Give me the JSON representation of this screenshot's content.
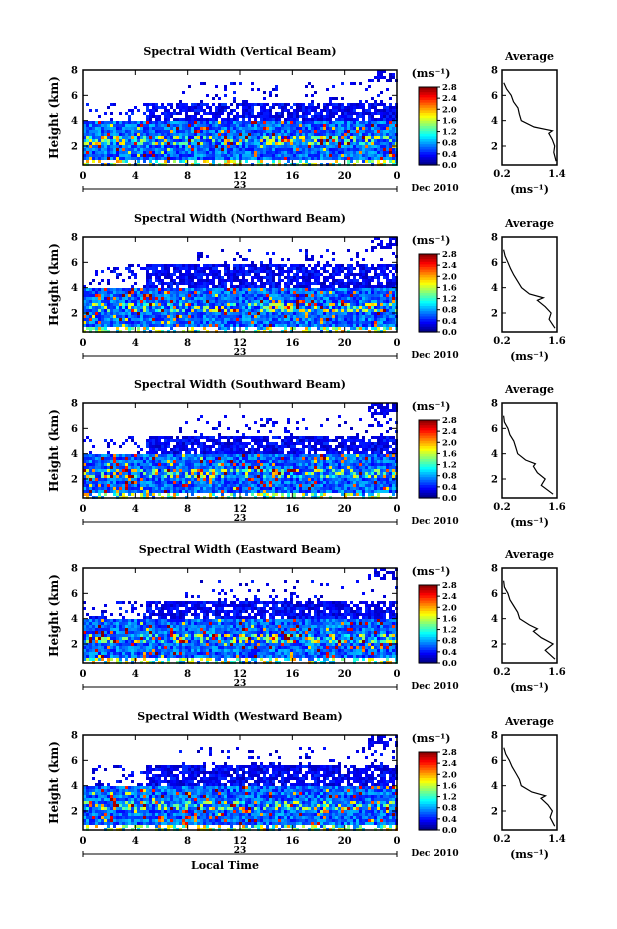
{
  "chart_data": [
    {
      "type": "heatmap",
      "title": "Spectral Width (Vertical Beam)",
      "ylabel": "Height (km)",
      "xticks": [
        "0",
        "4",
        "8",
        "12",
        "16",
        "20",
        "0"
      ],
      "yticks": [
        "2",
        "4",
        "6",
        "8"
      ],
      "day_label": "23",
      "date_label": "Dec 2010",
      "colorbar": {
        "unit": "(ms⁻¹)",
        "ticks": [
          "2.8",
          "2.4",
          "2.0",
          "1.6",
          "1.2",
          "0.8",
          "0.4",
          "0.0"
        ],
        "range": [
          0.0,
          2.8
        ]
      },
      "xlim": [
        0,
        24
      ],
      "ylim": [
        0.5,
        8
      ],
      "layer_tops_km": [
        5.6,
        4.0
      ],
      "avg": {
        "title": "Average",
        "xticks": [
          "0.2",
          "1.4"
        ],
        "xlim": [
          0.2,
          1.4
        ],
        "xlabel": "(ms⁻¹)",
        "height_km": [
          0.8,
          1.5,
          2.0,
          2.5,
          3.0,
          3.2,
          3.5,
          4.0,
          4.5,
          5.0,
          5.5,
          6.0,
          6.5,
          7.0
        ],
        "width": [
          1.38,
          1.33,
          1.35,
          1.3,
          1.22,
          1.3,
          0.9,
          0.62,
          0.58,
          0.55,
          0.45,
          0.4,
          0.3,
          0.24
        ]
      }
    },
    {
      "type": "heatmap",
      "title": "Spectral Width (Northward Beam)",
      "ylabel": "Height (km)",
      "xticks": [
        "0",
        "4",
        "8",
        "12",
        "16",
        "20",
        "0"
      ],
      "yticks": [
        "2",
        "4",
        "6",
        "8"
      ],
      "day_label": "23",
      "date_label": "Dec 2010",
      "colorbar": {
        "unit": "(ms⁻¹)",
        "ticks": [
          "2.8",
          "2.4",
          "2.0",
          "1.6",
          "1.2",
          "0.8",
          "0.4",
          "0.0"
        ],
        "range": [
          0.0,
          2.8
        ]
      },
      "xlim": [
        0,
        24
      ],
      "ylim": [
        0.5,
        8
      ],
      "layer_tops_km": [
        6.0,
        4.0
      ],
      "avg": {
        "title": "Average",
        "xticks": [
          "0.2",
          "1.6"
        ],
        "xlim": [
          0.2,
          1.6
        ],
        "xlabel": "(ms⁻¹)",
        "height_km": [
          0.8,
          1.5,
          2.0,
          2.5,
          3.0,
          3.2,
          3.5,
          4.0,
          4.5,
          5.0,
          5.5,
          6.0,
          6.5,
          7.0
        ],
        "width": [
          1.55,
          1.4,
          1.45,
          1.3,
          1.1,
          1.25,
          0.9,
          0.7,
          0.6,
          0.5,
          0.42,
          0.35,
          0.28,
          0.24
        ]
      }
    },
    {
      "type": "heatmap",
      "title": "Spectral Width (Southward Beam)",
      "ylabel": "Height (km)",
      "xticks": [
        "0",
        "4",
        "8",
        "12",
        "16",
        "20",
        "0"
      ],
      "yticks": [
        "2",
        "4",
        "6",
        "8"
      ],
      "day_label": "23",
      "date_label": "Dec 2010",
      "colorbar": {
        "unit": "(ms⁻¹)",
        "ticks": [
          "2.8",
          "2.4",
          "2.0",
          "1.6",
          "1.2",
          "0.8",
          "0.4",
          "0.0"
        ],
        "range": [
          0.0,
          2.8
        ]
      },
      "xlim": [
        0,
        24
      ],
      "ylim": [
        0.5,
        8
      ],
      "layer_tops_km": [
        5.6,
        4.2
      ],
      "avg": {
        "title": "Average",
        "xticks": [
          "0.2",
          "1.6"
        ],
        "xlim": [
          0.2,
          1.6
        ],
        "xlabel": "(ms⁻¹)",
        "height_km": [
          0.8,
          1.5,
          2.0,
          2.5,
          3.0,
          3.2,
          3.5,
          4.0,
          4.5,
          5.0,
          5.5,
          6.0,
          6.5,
          7.0
        ],
        "width": [
          1.5,
          1.2,
          1.3,
          1.1,
          1.0,
          1.05,
          0.8,
          0.6,
          0.55,
          0.5,
          0.4,
          0.35,
          0.26,
          0.24
        ]
      }
    },
    {
      "type": "heatmap",
      "title": "Spectral Width (Eastward Beam)",
      "ylabel": "Height (km)",
      "xticks": [
        "0",
        "4",
        "8",
        "12",
        "16",
        "20",
        "0"
      ],
      "yticks": [
        "2",
        "4",
        "6",
        "8"
      ],
      "day_label": "23",
      "date_label": "Dec 2010",
      "colorbar": {
        "unit": "(ms⁻¹)",
        "ticks": [
          "2.8",
          "2.4",
          "2.0",
          "1.6",
          "1.2",
          "0.8",
          "0.4",
          "0.0"
        ],
        "range": [
          0.0,
          2.8
        ]
      },
      "xlim": [
        0,
        24
      ],
      "ylim": [
        0.5,
        8
      ],
      "layer_tops_km": [
        5.6,
        4.0
      ],
      "avg": {
        "title": "Average",
        "xticks": [
          "0.2",
          "1.6"
        ],
        "xlim": [
          0.2,
          1.6
        ],
        "xlabel": "(ms⁻¹)",
        "height_km": [
          0.8,
          1.5,
          2.0,
          2.5,
          3.0,
          3.2,
          3.5,
          4.0,
          4.5,
          5.0,
          5.5,
          6.0,
          6.5,
          7.0
        ],
        "width": [
          1.55,
          1.3,
          1.5,
          1.2,
          1.0,
          1.1,
          0.9,
          0.65,
          0.6,
          0.5,
          0.4,
          0.35,
          0.26,
          0.24
        ]
      }
    },
    {
      "type": "heatmap",
      "title": "Spectral Width (Westward Beam)",
      "ylabel": "Height (km)",
      "xticks": [
        "0",
        "4",
        "8",
        "12",
        "16",
        "20",
        "0"
      ],
      "yticks": [
        "2",
        "4",
        "6",
        "8"
      ],
      "day_label": "23",
      "date_label": "Dec 2010",
      "xlabel": "Local Time",
      "colorbar": {
        "unit": "(ms⁻¹)",
        "ticks": [
          "2.8",
          "2.4",
          "2.0",
          "1.6",
          "1.2",
          "0.8",
          "0.4",
          "0.0"
        ],
        "range": [
          0.0,
          2.8
        ]
      },
      "xlim": [
        0,
        24
      ],
      "ylim": [
        0.5,
        8
      ],
      "layer_tops_km": [
        5.8,
        4.0
      ],
      "avg": {
        "title": "Average",
        "xticks": [
          "0.2",
          "1.4"
        ],
        "xlim": [
          0.2,
          1.4
        ],
        "xlabel": "(ms⁻¹)",
        "height_km": [
          0.8,
          1.5,
          2.0,
          2.5,
          3.0,
          3.2,
          3.5,
          4.0,
          4.5,
          5.0,
          5.5,
          6.0,
          6.5,
          7.0
        ],
        "width": [
          1.35,
          1.25,
          1.3,
          1.2,
          1.05,
          1.15,
          0.85,
          0.62,
          0.58,
          0.5,
          0.42,
          0.36,
          0.28,
          0.24
        ]
      }
    }
  ]
}
